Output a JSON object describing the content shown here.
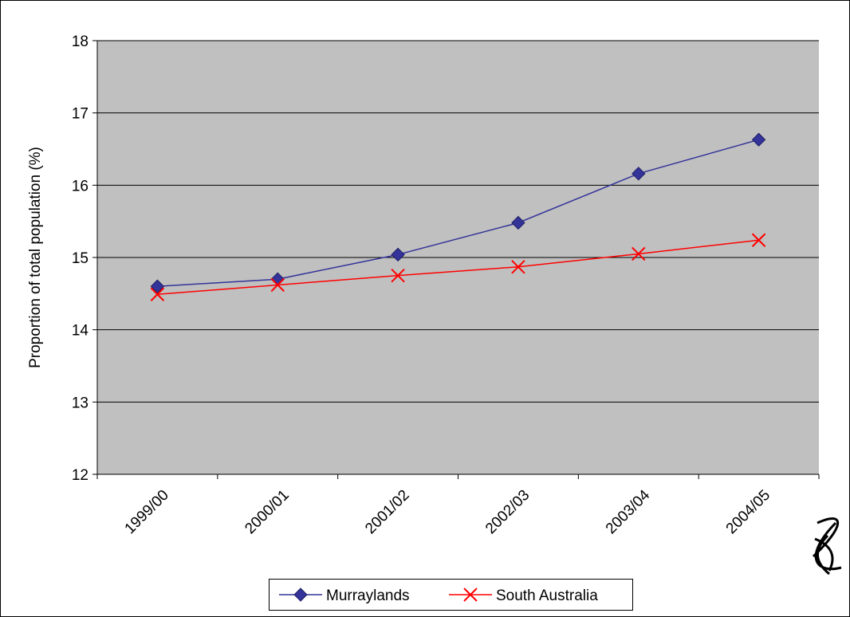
{
  "chart_data": {
    "type": "line",
    "categories": [
      "1999/00",
      "2000/01",
      "2001/02",
      "2002/03",
      "2003/04",
      "2004/05"
    ],
    "series": [
      {
        "name": "Murraylands",
        "values": [
          14.6,
          14.7,
          15.04,
          15.48,
          16.16,
          16.63
        ],
        "color": "#333399",
        "marker": "diamond"
      },
      {
        "name": "South Australia",
        "values": [
          14.49,
          14.62,
          14.75,
          14.87,
          15.05,
          15.24
        ],
        "color": "#ff0000",
        "marker": "x"
      }
    ],
    "title": "",
    "xlabel": "",
    "ylabel": "Proportion of total population (%)",
    "ylim": [
      12,
      18
    ],
    "yticks": [
      12,
      13,
      14,
      15,
      16,
      17,
      18
    ],
    "grid": true,
    "plot_background": "#c0c0c0",
    "legend_position": "bottom"
  }
}
